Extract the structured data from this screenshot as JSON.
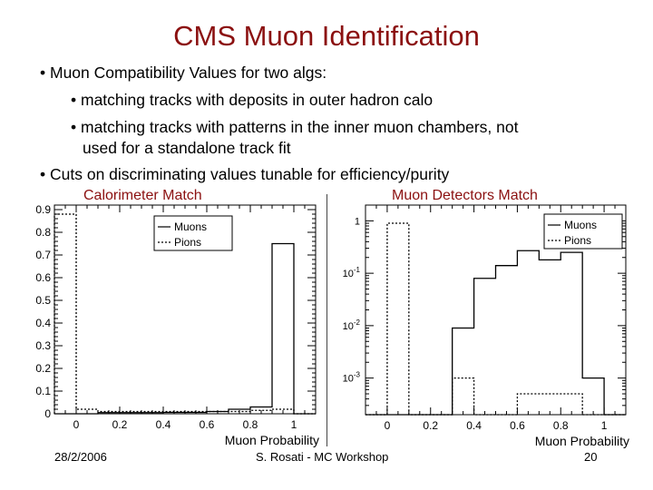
{
  "slide": {
    "title": "CMS Muon Identification",
    "bullets": [
      "• Muon Compatibility Values for two algs:",
      "• matching tracks with deposits in outer hadron calo",
      "• matching tracks with patterns in the inner muon chambers, not",
      "used for a standalone track fit",
      "• Cuts on discriminating values tunable for efficiency/purity"
    ],
    "footer": {
      "date": "28/2/2006",
      "center": "S. Rosati - MC Workshop",
      "page": "20"
    }
  },
  "chart_data": [
    {
      "type": "bar",
      "title": "Calorimeter Match",
      "xlabel": "Muon Probability",
      "ylabel": "",
      "xlim": [
        -0.1,
        1.1
      ],
      "ylim": [
        0,
        0.92
      ],
      "y_scale": "linear",
      "x_ticks": [
        "0",
        "0.2",
        "0.4",
        "0.6",
        "0.8",
        "1"
      ],
      "y_ticks": [
        "0",
        "0.1",
        "0.2",
        "0.3",
        "0.4",
        "0.5",
        "0.6",
        "0.7",
        "0.8",
        "0.9"
      ],
      "bin_edges": [
        -0.1,
        0.0,
        0.1,
        0.2,
        0.3,
        0.4,
        0.5,
        0.6,
        0.7,
        0.8,
        0.9,
        1.0,
        1.1
      ],
      "legend_position": "top-center",
      "series": [
        {
          "name": "Muons",
          "line_style": "solid",
          "values": [
            0,
            0,
            0.005,
            0.005,
            0.005,
            0.006,
            0.006,
            0.01,
            0.02,
            0.03,
            0.75,
            0
          ]
        },
        {
          "name": "Pions",
          "line_style": "dotted",
          "values": [
            0.88,
            0.02,
            0.01,
            0.01,
            0.01,
            0.01,
            0.01,
            0.01,
            0.01,
            0.015,
            0.02,
            0
          ]
        }
      ]
    },
    {
      "type": "bar",
      "title": "Muon Detectors Match",
      "xlabel": "Muon Probability",
      "ylabel": "",
      "xlim": [
        -0.1,
        1.1
      ],
      "ylim": [
        0.0002,
        2
      ],
      "y_scale": "log",
      "x_ticks": [
        "0",
        "0.2",
        "0.4",
        "0.6",
        "0.8",
        "1"
      ],
      "y_ticks": [
        "10^-3",
        "10^-2",
        "10^-1",
        "1"
      ],
      "bin_edges": [
        -0.1,
        0.0,
        0.1,
        0.2,
        0.3,
        0.4,
        0.5,
        0.6,
        0.7,
        0.8,
        0.9,
        1.0,
        1.1
      ],
      "legend_position": "top-right",
      "series": [
        {
          "name": "Muons",
          "line_style": "solid",
          "values": [
            0.0002,
            0.0002,
            0.0002,
            0.0002,
            0.009,
            0.08,
            0.14,
            0.27,
            0.18,
            0.25,
            0.001,
            0.0002
          ]
        },
        {
          "name": "Pions",
          "line_style": "dotted",
          "values": [
            0.0002,
            0.9,
            0.0002,
            0.0002,
            0.001,
            0.0002,
            0.0002,
            0.0005,
            0.0005,
            0.0005,
            0.0002,
            0.0002
          ]
        }
      ]
    }
  ]
}
